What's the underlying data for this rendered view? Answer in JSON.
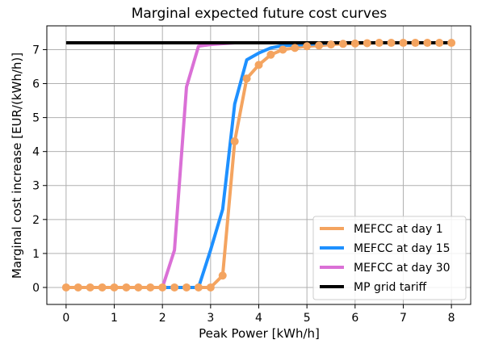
{
  "chart_data": {
    "type": "line",
    "title": "Marginal expected future cost curves",
    "xlabel": "Peak Power [kWh/h]",
    "ylabel": "Marginal cost increase [EUR/(kWh/h)]",
    "xlim": [
      -0.4,
      8.4
    ],
    "ylim": [
      -0.5,
      7.7
    ],
    "xticks": [
      0,
      1,
      2,
      3,
      4,
      5,
      6,
      7,
      8
    ],
    "yticks": [
      0,
      1,
      2,
      3,
      4,
      5,
      6,
      7
    ],
    "grid": true,
    "legend": "lower-right",
    "series": [
      {
        "name": "MEFCC at day 1",
        "color": "#f4a460",
        "markers": true,
        "x": [
          0,
          0.25,
          0.5,
          0.75,
          1.0,
          1.25,
          1.5,
          1.75,
          2.0,
          2.25,
          2.5,
          2.75,
          3.0,
          3.25,
          3.5,
          3.75,
          4.0,
          4.25,
          4.5,
          4.75,
          5.0,
          5.25,
          5.5,
          5.75,
          6.0,
          6.25,
          6.5,
          6.75,
          7.0,
          7.25,
          7.5,
          7.75,
          8.0
        ],
        "y": [
          0,
          0,
          0,
          0,
          0,
          0,
          0,
          0,
          0,
          0,
          0,
          0,
          0,
          0.35,
          4.3,
          6.15,
          6.55,
          6.85,
          7.0,
          7.05,
          7.1,
          7.12,
          7.15,
          7.17,
          7.18,
          7.19,
          7.2,
          7.2,
          7.2,
          7.2,
          7.2,
          7.2,
          7.2
        ]
      },
      {
        "name": "MEFCC at day 15",
        "color": "#1e90ff",
        "markers": false,
        "x": [
          2.0,
          2.75,
          3.0,
          3.25,
          3.5,
          3.75,
          4.0,
          4.25,
          4.5,
          5.0,
          5.5,
          8.0
        ],
        "y": [
          0,
          0,
          1.1,
          2.3,
          5.4,
          6.7,
          6.9,
          7.05,
          7.12,
          7.15,
          7.2,
          7.2
        ]
      },
      {
        "name": "MEFCC at day 30",
        "color": "#da70d6",
        "markers": false,
        "x": [
          2.0,
          2.25,
          2.5,
          2.75,
          3.0,
          3.5,
          4.0,
          5.0,
          8.0
        ],
        "y": [
          0,
          1.1,
          5.9,
          7.1,
          7.15,
          7.2,
          7.2,
          7.2,
          7.2
        ]
      },
      {
        "name": "MP grid tariff",
        "color": "#000000",
        "markers": false,
        "x": [
          0,
          8
        ],
        "y": [
          7.2,
          7.2
        ]
      }
    ]
  }
}
